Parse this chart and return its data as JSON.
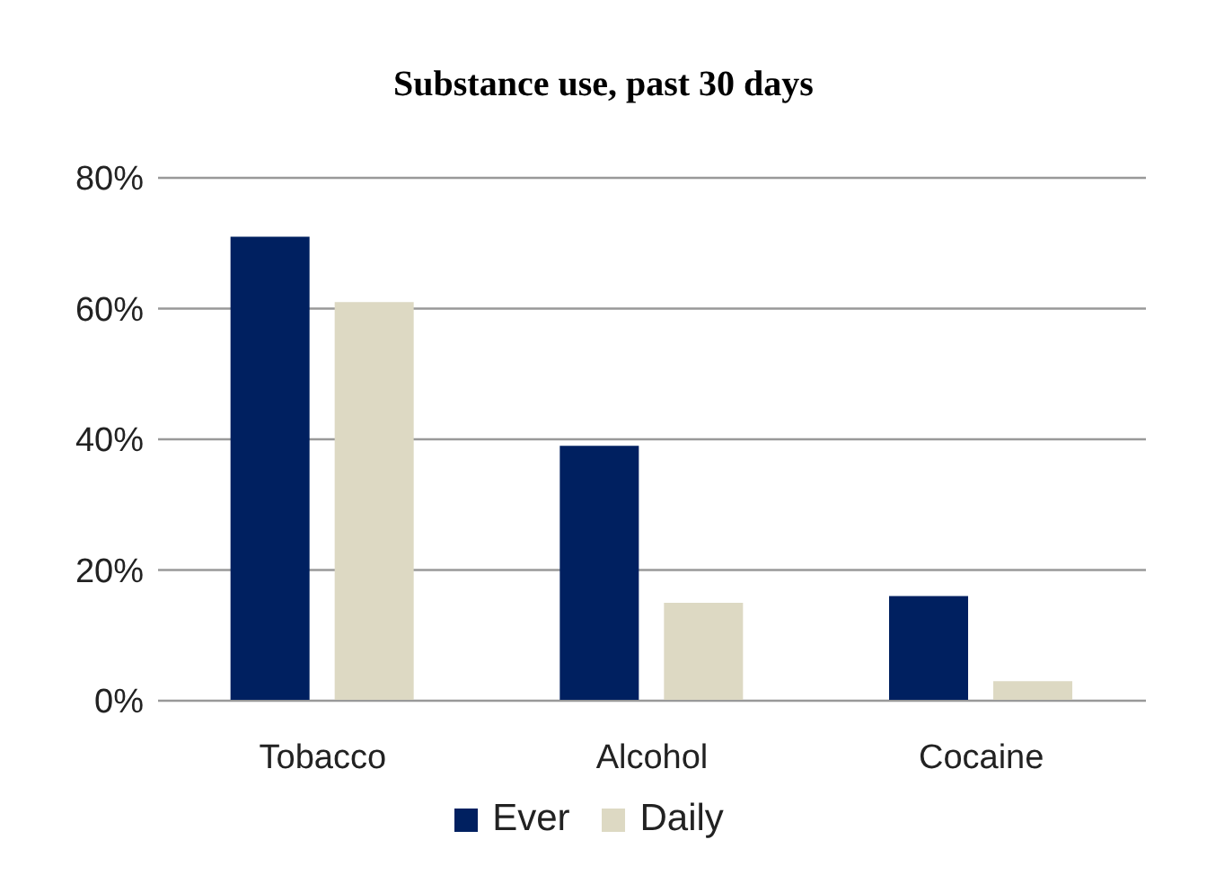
{
  "chart_data": {
    "type": "bar",
    "title": "Substance use, past 30 days",
    "categories": [
      "Tobacco",
      "Alcohol",
      "Cocaine"
    ],
    "series": [
      {
        "name": "Ever",
        "color": "#002060",
        "values": [
          71,
          39,
          16
        ]
      },
      {
        "name": "Daily",
        "color": "#ddd9c3",
        "values": [
          61,
          15,
          3
        ]
      }
    ],
    "ylim": [
      0,
      80
    ],
    "yticks": [
      {
        "value": 0,
        "label": "0%"
      },
      {
        "value": 20,
        "label": "20%"
      },
      {
        "value": 40,
        "label": "40%"
      },
      {
        "value": 60,
        "label": "60%"
      },
      {
        "value": 80,
        "label": "80%"
      }
    ],
    "grid": "y",
    "legend": "bottom"
  }
}
